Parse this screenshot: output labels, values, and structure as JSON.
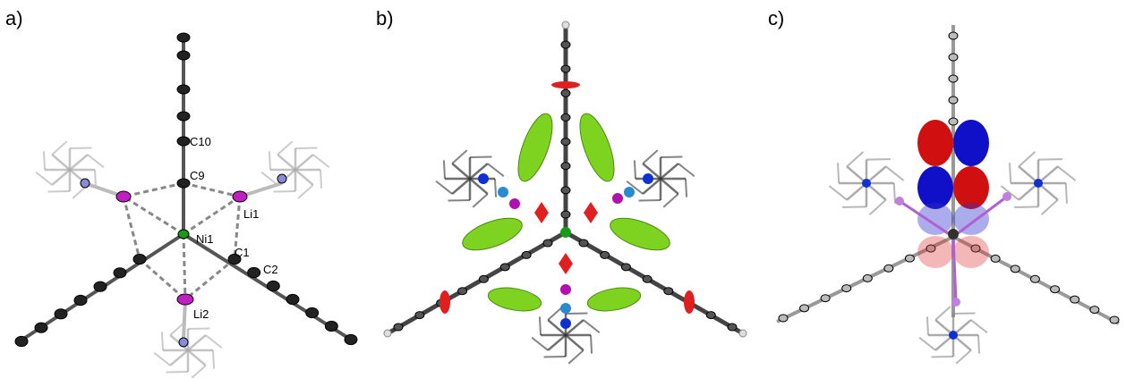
{
  "panels": [
    {
      "label": "a)",
      "atom_labels": [
        "C10",
        "C9",
        "Li1",
        "Ni1",
        "C1",
        "C2",
        "Li2"
      ]
    },
    {
      "label": "b)"
    },
    {
      "label": "c)"
    }
  ]
}
